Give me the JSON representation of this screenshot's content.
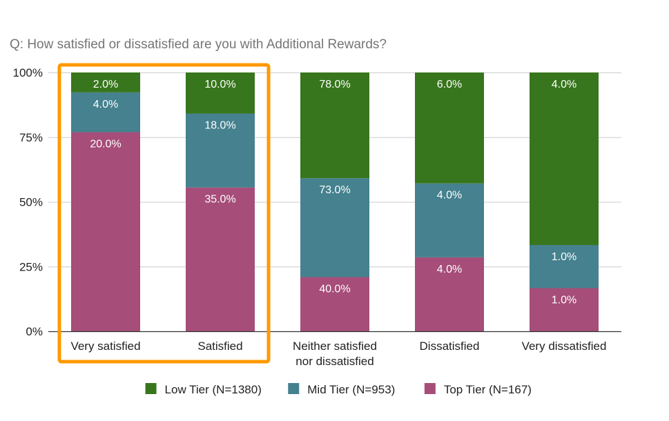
{
  "chart_data": {
    "type": "bar",
    "stacked": true,
    "normalized": true,
    "title": "Q: How satisfied or dissatisfied are you with Additional Rewards?",
    "categories": [
      [
        "Very satisfied"
      ],
      [
        "Satisfied"
      ],
      [
        "Neither satisfied",
        "nor dissatisfied"
      ],
      [
        "Dissatisfied"
      ],
      [
        "Very dissatisfied"
      ]
    ],
    "y_ticks": [
      "0%",
      "25%",
      "50%",
      "75%",
      "100%"
    ],
    "ylim": [
      0,
      100
    ],
    "series": [
      {
        "name": "Top Tier (N=167)",
        "color": "#a64d79",
        "values": [
          20.0,
          35.0,
          40.0,
          4.0,
          1.0
        ],
        "labels": [
          "20.0%",
          "35.0%",
          "40.0%",
          "4.0%",
          "1.0%"
        ]
      },
      {
        "name": "Mid Tier (N=953)",
        "color": "#45818e",
        "values": [
          4.0,
          18.0,
          73.0,
          4.0,
          1.0
        ],
        "labels": [
          "4.0%",
          "18.0%",
          "73.0%",
          "4.0%",
          "1.0%"
        ]
      },
      {
        "name": "Low Tier (N=1380)",
        "color": "#38761d",
        "values": [
          2.0,
          10.0,
          78.0,
          6.0,
          4.0
        ],
        "labels": [
          "2.0%",
          "10.0%",
          "78.0%",
          "6.0%",
          "4.0%"
        ]
      }
    ],
    "legend_order": [
      2,
      1,
      0
    ],
    "legend_position": "bottom",
    "highlight": {
      "categories": [
        0,
        1
      ],
      "color": "#ff9900"
    }
  }
}
